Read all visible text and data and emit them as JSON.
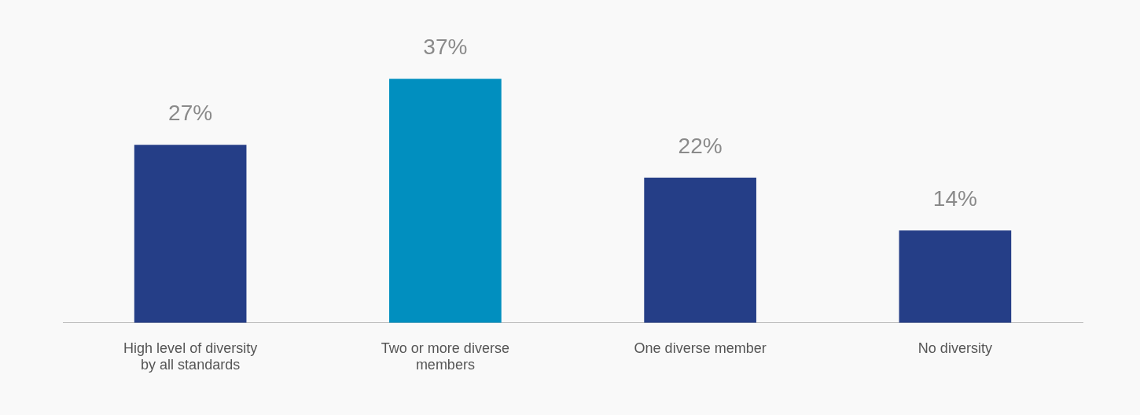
{
  "chart_data": {
    "type": "bar",
    "categories": [
      "High level of diversity by all standards",
      "Two or more diverse members",
      "One diverse member",
      "No diversity"
    ],
    "values": [
      27,
      37,
      22,
      14
    ],
    "colors": [
      "#253e87",
      "#018fbf",
      "#253e87",
      "#253e87"
    ],
    "value_labels": [
      "27%",
      "37%",
      "22%",
      "14%"
    ],
    "grid": false,
    "legend": false
  }
}
